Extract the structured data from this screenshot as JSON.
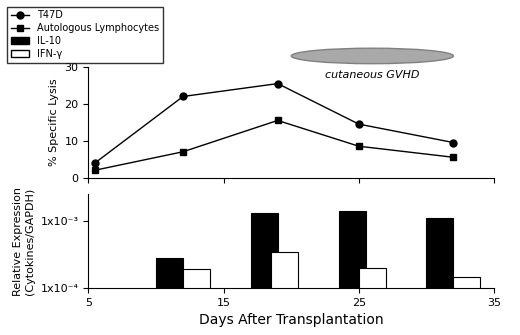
{
  "chart_data": [
    {
      "type": "line",
      "y_label": "% Specific Lysis",
      "xlim": [
        5,
        35
      ],
      "xticks": [
        5,
        15,
        25,
        35
      ],
      "ylim": [
        0,
        30
      ],
      "yticks": [
        0,
        10,
        20,
        30
      ],
      "tick_labels": "y",
      "legend": "upper left",
      "series": [
        {
          "name": "T47D",
          "color": "#000000",
          "marker": "o",
          "line_style": "solid",
          "x": [
            5.5,
            12,
            19,
            25,
            32
          ],
          "values": [
            4,
            22,
            25.5,
            14.5,
            9.5
          ]
        },
        {
          "name": "Autologous Lymphocytes",
          "color": "#000000",
          "marker": "s",
          "line_style": "solid",
          "x": [
            5.5,
            12,
            19,
            25,
            32
          ],
          "values": [
            2,
            7,
            15.5,
            8.5,
            5.5
          ]
        }
      ],
      "annotations": [
        {
          "text": "cutaneous GVHD",
          "x": [
            20,
            32
          ]
        }
      ]
    },
    {
      "type": "bar",
      "x_label": "Days After Transplantation",
      "y_label": "Relative Expression\n(Cytokines/GAPDH)",
      "log": "y",
      "xlim": [
        5,
        35
      ],
      "xticks": [
        5,
        15,
        25,
        35
      ],
      "ylim": [
        0.0001,
        0.0025
      ],
      "yticks": [
        {
          "value": 0.0001,
          "label": "1x10⁻⁴"
        },
        {
          "value": 0.001,
          "label": "1x10⁻³"
        }
      ],
      "series": [
        {
          "name": "IL-10",
          "color": "#000000",
          "x": [
            11,
            18,
            24.5,
            31
          ],
          "values": [
            0.00028,
            0.0013,
            0.0014,
            0.0011
          ]
        },
        {
          "name": "IFN-γ",
          "color": "#ffffff",
          "x": [
            13,
            19.5,
            26,
            33
          ],
          "values": [
            0.00019,
            0.00034,
            0.0002,
            0.000145
          ]
        }
      ]
    }
  ]
}
